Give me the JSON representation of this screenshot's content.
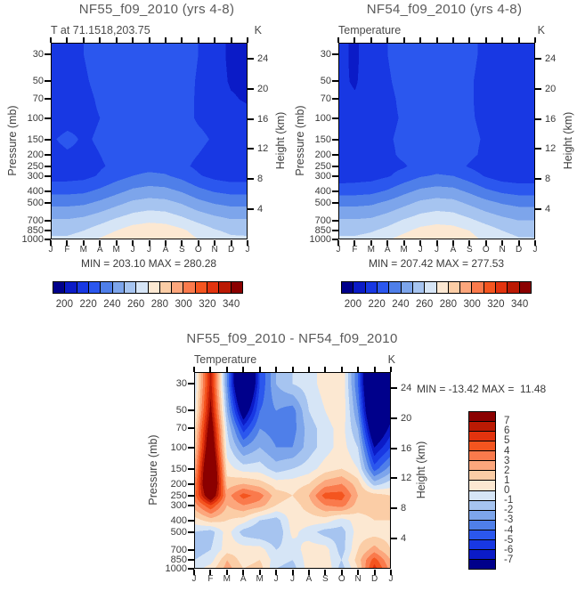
{
  "palette": [
    "#00008B",
    "#0B1BC7",
    "#1838E3",
    "#2B57EE",
    "#4F7FE9",
    "#7DA5EB",
    "#A6C4F0",
    "#D6E5F6",
    "#FCE8D2",
    "#FBCDA6",
    "#FCA67C",
    "#FA7A4C",
    "#F4551F",
    "#E2330E",
    "#BB1A04",
    "#8B0000"
  ],
  "axis_labels": {
    "left": "Pressure (mb)",
    "right": "Height (km)"
  },
  "chart_data": [
    {
      "type": "heatmap",
      "title": "NF55_f09_2010 (yrs 4-8)",
      "subtitle": "T at 71.1518,203.75",
      "units": "K",
      "stats": "MIN = 203.10 MAX = 280.28",
      "months": [
        "J",
        "F",
        "M",
        "A",
        "M",
        "J",
        "J",
        "A",
        "S",
        "O",
        "N",
        "D",
        "J"
      ],
      "pressure_levels_mb": [
        30,
        50,
        70,
        100,
        150,
        200,
        250,
        300,
        400,
        500,
        700,
        850,
        1000
      ],
      "height_ticks_km": [
        4,
        8,
        12,
        16,
        20,
        24
      ],
      "colorbar_tick_labels": [
        "200",
        "220",
        "240",
        "260",
        "280",
        "300",
        "320",
        "340"
      ],
      "value_to_color": {
        "vmin": 190,
        "step": 10
      },
      "values": [
        [
          216,
          217,
          220,
          223,
          227,
          229,
          230,
          229,
          225,
          220,
          214,
          208,
          206
        ],
        [
          215,
          216,
          219,
          222,
          226,
          228,
          229,
          228,
          224,
          219,
          214,
          209,
          208
        ],
        [
          215,
          216,
          218,
          221,
          224,
          227,
          228,
          227,
          223,
          219,
          215,
          211,
          209
        ],
        [
          216,
          217,
          218,
          220,
          223,
          226,
          227,
          226,
          223,
          219,
          217,
          214,
          213
        ],
        [
          219,
          222,
          219,
          221,
          224,
          226,
          227,
          226,
          224,
          222,
          219,
          217,
          217
        ],
        [
          217,
          219,
          218,
          220,
          223,
          226,
          227,
          226,
          223,
          220,
          217,
          215,
          215
        ],
        [
          214,
          215,
          216,
          219,
          222,
          226,
          227,
          226,
          222,
          218,
          215,
          213,
          213
        ],
        [
          216,
          216,
          217,
          221,
          226,
          230,
          232,
          231,
          227,
          221,
          217,
          215,
          215
        ],
        [
          227,
          227,
          228,
          232,
          237,
          242,
          244,
          243,
          239,
          233,
          229,
          227,
          227
        ],
        [
          237,
          237,
          238,
          242,
          247,
          252,
          254,
          253,
          249,
          243,
          239,
          237,
          237
        ],
        [
          251,
          251,
          253,
          257,
          262,
          266,
          268,
          267,
          263,
          258,
          254,
          251,
          251
        ],
        [
          257,
          257,
          260,
          265,
          270,
          275,
          277,
          276,
          272,
          266,
          261,
          258,
          257
        ],
        [
          262,
          262,
          265,
          271,
          276,
          279,
          280,
          279,
          275,
          270,
          265,
          262,
          262
        ]
      ]
    },
    {
      "type": "heatmap",
      "title": "NF54_f09_2010 (yrs 4-8)",
      "subtitle": "Temperature",
      "units": "K",
      "stats": "MIN = 207.42 MAX = 277.53",
      "months": [
        "J",
        "F",
        "M",
        "A",
        "M",
        "J",
        "J",
        "A",
        "S",
        "O",
        "N",
        "D",
        "J"
      ],
      "pressure_levels_mb": [
        30,
        50,
        70,
        100,
        150,
        200,
        250,
        300,
        400,
        500,
        700,
        850,
        1000
      ],
      "height_ticks_km": [
        4,
        8,
        12,
        16,
        20,
        24
      ],
      "colorbar_tick_labels": [
        "200",
        "220",
        "240",
        "260",
        "280",
        "300",
        "320",
        "340"
      ],
      "value_to_color": {
        "vmin": 190,
        "step": 10
      },
      "values": [
        [
          213,
          208,
          216,
          220,
          224,
          226,
          227,
          226,
          222,
          218,
          214,
          211,
          211
        ],
        [
          212,
          209,
          215,
          219,
          223,
          225,
          226,
          225,
          221,
          217,
          213,
          211,
          211
        ],
        [
          213,
          211,
          215,
          218,
          222,
          224,
          225,
          224,
          221,
          217,
          214,
          212,
          212
        ],
        [
          214,
          213,
          215,
          218,
          221,
          224,
          225,
          224,
          221,
          218,
          215,
          213,
          213
        ],
        [
          216,
          215,
          216,
          219,
          222,
          225,
          226,
          225,
          222,
          219,
          216,
          215,
          215
        ],
        [
          215,
          214,
          215,
          218,
          222,
          225,
          226,
          225,
          222,
          218,
          215,
          214,
          214
        ],
        [
          213,
          213,
          214,
          217,
          219,
          224,
          226,
          224,
          219,
          215,
          213,
          212,
          212
        ],
        [
          214,
          215,
          216,
          219,
          224,
          229,
          231,
          230,
          225,
          219,
          215,
          214,
          214
        ],
        [
          226,
          226,
          227,
          231,
          237,
          242,
          244,
          243,
          238,
          232,
          228,
          226,
          226
        ],
        [
          237,
          237,
          238,
          242,
          247,
          252,
          254,
          253,
          248,
          243,
          239,
          237,
          237
        ],
        [
          251,
          251,
          252,
          256,
          261,
          265,
          267,
          266,
          262,
          257,
          253,
          250,
          250
        ],
        [
          257,
          257,
          259,
          263,
          268,
          273,
          275,
          274,
          270,
          265,
          260,
          257,
          256
        ],
        [
          262,
          262,
          264,
          269,
          274,
          277,
          277,
          277,
          273,
          268,
          264,
          261,
          261
        ]
      ]
    },
    {
      "type": "heatmap",
      "title": "NF55_f09_2010 - NF54_f09_2010",
      "subtitle": "Temperature",
      "units": "K",
      "stats": "MIN = -13.42 MAX =  11.48",
      "months": [
        "J",
        "F",
        "M",
        "A",
        "M",
        "J",
        "J",
        "A",
        "S",
        "O",
        "N",
        "D",
        "J"
      ],
      "pressure_levels_mb": [
        30,
        50,
        70,
        100,
        150,
        200,
        250,
        300,
        400,
        500,
        700,
        850,
        1000
      ],
      "height_ticks_km": [
        4,
        8,
        12,
        16,
        20,
        24
      ],
      "colorbar_tick_labels": [
        "7",
        "6",
        "5",
        "4",
        "3",
        "2",
        "1",
        "0",
        "-1",
        "-2",
        "-3",
        "-4",
        "-5",
        "-6",
        "-7"
      ],
      "value_to_color": {
        "vmin": -8,
        "step": 1
      },
      "values": [
        [
          -1,
          6.5,
          -3,
          -12.5,
          -5,
          -2,
          -1,
          -0.5,
          0.5,
          1,
          -4,
          -13,
          -9
        ],
        [
          -0.5,
          7.5,
          -2,
          -8.5,
          -4,
          -3,
          -3.5,
          -1,
          0,
          1,
          -3,
          -11.5,
          -8
        ],
        [
          0.5,
          8.5,
          -1,
          -5.5,
          -3,
          -3.5,
          -3.5,
          -1.5,
          -0.5,
          0.5,
          -2,
          -9.5,
          -6.5
        ],
        [
          1,
          9.5,
          -0.5,
          -3,
          -2,
          -3,
          -3,
          -1.5,
          -0.5,
          0.5,
          -1,
          -7,
          -5
        ],
        [
          2,
          11,
          0.5,
          -0.5,
          -0.5,
          -1.5,
          -1,
          -0.5,
          0.5,
          1,
          0,
          -4.5,
          -2.5
        ],
        [
          3,
          11,
          1.5,
          2,
          1.5,
          0.5,
          0.5,
          1,
          2.5,
          3,
          1.5,
          -1.5,
          -0.5
        ],
        [
          3.5,
          9,
          2.5,
          4.5,
          3.5,
          1.5,
          1,
          2,
          4.5,
          4.5,
          2,
          1.5,
          1
        ],
        [
          2.5,
          5,
          2,
          3,
          2.5,
          1,
          0.5,
          1.5,
          3,
          3.5,
          1.5,
          1.5,
          1.5
        ],
        [
          0.5,
          1.5,
          1,
          0.5,
          -1,
          -1.5,
          0.5,
          0.5,
          0.5,
          -0.5,
          0.5,
          1,
          1
        ],
        [
          -1,
          -1.5,
          0.5,
          -1.5,
          -2,
          -2,
          0.3,
          -0.5,
          -1.5,
          -1.5,
          0.5,
          0.5,
          0.5
        ],
        [
          -1.5,
          -1,
          0.5,
          0.5,
          0.5,
          -1,
          -0.5,
          0.5,
          0.5,
          -1.5,
          1,
          2.5,
          1
        ],
        [
          -1,
          -0.5,
          2,
          0.5,
          1,
          -0.5,
          -1,
          0.5,
          0.5,
          -1,
          1.5,
          4.5,
          2
        ],
        [
          -0.5,
          0.5,
          2.5,
          1,
          1.5,
          -1,
          -1.5,
          0.5,
          1,
          -1.5,
          1,
          5.5,
          2.5
        ]
      ]
    }
  ]
}
